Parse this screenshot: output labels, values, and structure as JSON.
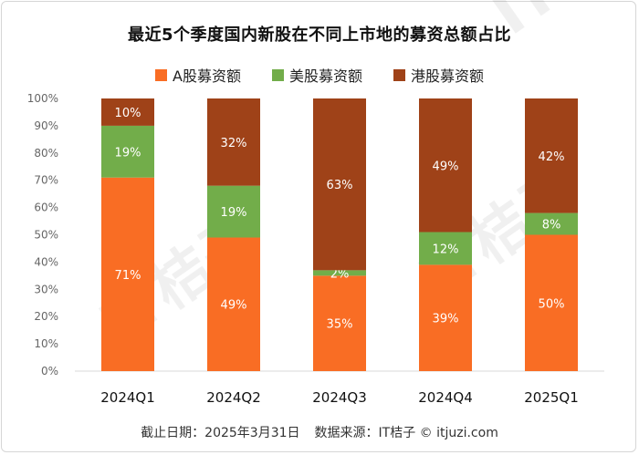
{
  "colors": {
    "a_share": "#f96d24",
    "us": "#72ad4a",
    "hk": "#9f4218",
    "axis_text": "#666666",
    "grid": "#d9d9d9"
  },
  "footer": {
    "date_text": "截止日期：2025年3月31日",
    "source_text": "数据来源：IT桔子 © itjuzi.com"
  },
  "watermark": {
    "text": "IT桔子",
    "url": "ITJUZI.COM"
  },
  "chart_data": {
    "type": "bar",
    "stacked": true,
    "title": "最近5个季度国内新股在不同上市地的募资总额占比",
    "categories": [
      "2024Q1",
      "2024Q2",
      "2024Q3",
      "2024Q4",
      "2025Q1"
    ],
    "series": [
      {
        "name": "A股募资额",
        "color": "#f96d24",
        "values": [
          71,
          49,
          35,
          39,
          50
        ],
        "labels": [
          "71%",
          "49%",
          "35%",
          "39%",
          "50%"
        ]
      },
      {
        "name": "美股募资额",
        "color": "#72ad4a",
        "values": [
          19,
          19,
          2,
          12,
          8
        ],
        "labels": [
          "19%",
          "19%",
          "2%",
          "12%",
          "8%"
        ]
      },
      {
        "name": "港股募资额",
        "color": "#9f4218",
        "values": [
          10,
          32,
          63,
          49,
          42
        ],
        "labels": [
          "10%",
          "32%",
          "63%",
          "49%",
          "42%"
        ]
      }
    ],
    "y_ticks": [
      "0%",
      "10%",
      "20%",
      "30%",
      "40%",
      "50%",
      "60%",
      "70%",
      "80%",
      "90%",
      "100%"
    ],
    "ylim": [
      0,
      100
    ],
    "grid": false,
    "legend": "top-center"
  }
}
